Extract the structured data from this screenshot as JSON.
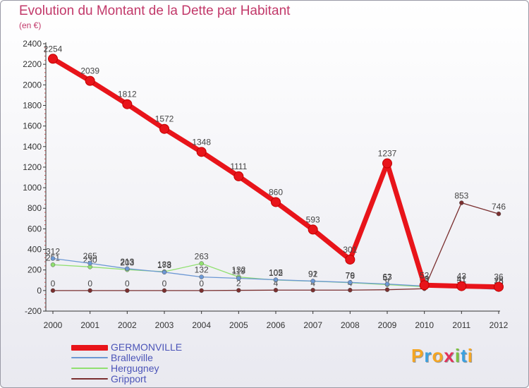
{
  "header": {
    "title": "Evolution du Montant de la Dette par Habitant",
    "unit": "(en €)"
  },
  "logo": {
    "letters": [
      "P",
      "r",
      "o",
      "x",
      "i",
      "t",
      "i"
    ],
    "colors": [
      "#f5a623",
      "#3ba0e0",
      "#f5a623",
      "#e2315b",
      "#7cc242",
      "#3ba0e0",
      "#f5a623"
    ]
  },
  "chart_data": {
    "type": "line",
    "title": "Evolution du Montant de la Dette par Habitant",
    "subtitle": "(en €)",
    "xlabel": "",
    "ylabel": "",
    "x": [
      "2000",
      "2001",
      "2002",
      "2003",
      "2004",
      "2005",
      "2006",
      "2007",
      "2008",
      "2009",
      "2010",
      "2011",
      "2012"
    ],
    "ylim": [
      -200,
      2400
    ],
    "yticks": [
      -200,
      0,
      200,
      400,
      600,
      800,
      1000,
      1200,
      1400,
      1600,
      1800,
      2000,
      2200,
      2400
    ],
    "grid": false,
    "legend_position": "bottom-left",
    "series": [
      {
        "name": "GERMONVILLE",
        "color": "#e8141a",
        "values": [
          2254,
          2039,
          1812,
          1572,
          1348,
          1111,
          860,
          593,
          301,
          1237,
          52,
          43,
          36
        ]
      },
      {
        "name": "Bralleville",
        "color": "#6c98d4",
        "values": [
          312,
          265,
          213,
          178,
          132,
          119,
          105,
          92,
          79,
          63,
          43,
          31,
          10
        ]
      },
      {
        "name": "Hergugney",
        "color": "#90e070",
        "values": [
          251,
          230,
          203,
          183,
          263,
          132,
          102,
          91,
          76,
          57,
          37,
          41,
          28
        ]
      },
      {
        "name": "Gripport",
        "color": "#7a2f2f",
        "values": [
          0,
          0,
          0,
          0,
          0,
          2,
          4,
          4,
          4,
          8,
          18,
          853,
          746
        ]
      }
    ]
  }
}
